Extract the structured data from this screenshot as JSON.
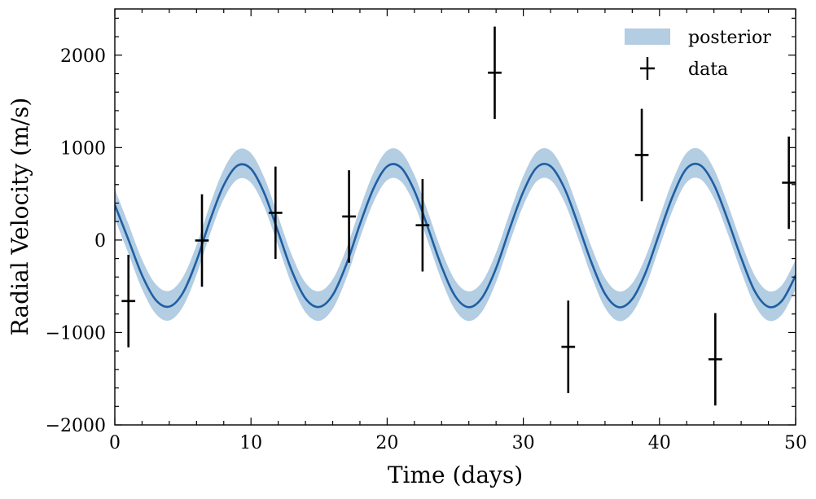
{
  "chart_data": {
    "type": "line",
    "title": "",
    "xlabel": "Time (days)",
    "ylabel": "Radial Velocity (m/s)",
    "xlim": [
      0,
      50
    ],
    "ylim": [
      -2000,
      2500
    ],
    "xticks": [
      0,
      10,
      20,
      30,
      40,
      50
    ],
    "yticks": [
      -2000,
      -1000,
      0,
      1000,
      2000
    ],
    "xtick_labels": [
      "0",
      "10",
      "20",
      "30",
      "40",
      "50"
    ],
    "ytick_labels": [
      "−2000",
      "−1000",
      "0",
      "1000",
      "2000"
    ],
    "grid": false,
    "legend_position": "top-right",
    "legend": [
      "posterior",
      "data"
    ],
    "colors": {
      "band": "#b3cde3",
      "line": "#1f5fa3",
      "data": "#000000"
    },
    "model": {
      "x": [
        0,
        1,
        2,
        3,
        4,
        5,
        6,
        7,
        8,
        9,
        10,
        11,
        12,
        13,
        14,
        15,
        16,
        17,
        18,
        19,
        20,
        21,
        22,
        23,
        24,
        25,
        26,
        27,
        28,
        29,
        30,
        31,
        32,
        33,
        34,
        35,
        36,
        37,
        38,
        39,
        40,
        41,
        42,
        43,
        44,
        45,
        46,
        47,
        48,
        49,
        50
      ],
      "median": [
        380,
        3,
        -381,
        -647,
        -720,
        -571,
        -225,
        217,
        594,
        805,
        770,
        498,
        84,
        -333,
        -631,
        -724,
        -595,
        -265,
        170,
        559,
        797,
        786,
        533,
        132,
        -287,
        -608,
        -726,
        -617,
        -305,
        124,
        523,
        787,
        799,
        567,
        178,
        -241,
        -582,
        -726,
        -638,
        -345,
        76,
        485,
        775,
        809,
        599,
        224,
        -192,
        -554,
        -722,
        -656,
        -384
      ],
      "lower": [
        230,
        -147,
        -531,
        -797,
        -870,
        -721,
        -375,
        67,
        444,
        655,
        620,
        348,
        -66,
        -483,
        -781,
        -874,
        -745,
        -415,
        20,
        409,
        647,
        636,
        383,
        -18,
        -437,
        -758,
        -876,
        -767,
        -455,
        -26,
        373,
        637,
        649,
        417,
        28,
        -391,
        -732,
        -876,
        -788,
        -495,
        -74,
        335,
        625,
        659,
        449,
        74,
        -342,
        -704,
        -872,
        -806,
        -534
      ],
      "upper": [
        550,
        173,
        -211,
        -477,
        -550,
        -401,
        -55,
        387,
        764,
        975,
        940,
        668,
        254,
        -163,
        -461,
        -554,
        -425,
        -95,
        340,
        729,
        967,
        956,
        703,
        302,
        -117,
        -438,
        -556,
        -447,
        -135,
        294,
        693,
        957,
        969,
        737,
        348,
        -71,
        -412,
        -556,
        -468,
        -175,
        246,
        655,
        945,
        979,
        769,
        394,
        -22,
        -384,
        -552,
        -486,
        -214
      ]
    },
    "data_points": [
      {
        "x": 1.0,
        "y": -660,
        "yerr": 500,
        "xerr": 0.5
      },
      {
        "x": 6.4,
        "y": -5,
        "yerr": 500,
        "xerr": 0.5
      },
      {
        "x": 11.8,
        "y": 295,
        "yerr": 500,
        "xerr": 0.5
      },
      {
        "x": 17.2,
        "y": 255,
        "yerr": 500,
        "xerr": 0.5
      },
      {
        "x": 22.6,
        "y": 160,
        "yerr": 500,
        "xerr": 0.5
      },
      {
        "x": 27.9,
        "y": 1810,
        "yerr": 500,
        "xerr": 0.5
      },
      {
        "x": 33.3,
        "y": -1155,
        "yerr": 500,
        "xerr": 0.5
      },
      {
        "x": 38.7,
        "y": 920,
        "yerr": 500,
        "xerr": 0.5
      },
      {
        "x": 44.1,
        "y": -1290,
        "yerr": 500,
        "xerr": 0.5
      },
      {
        "x": 49.5,
        "y": 620,
        "yerr": 500,
        "xerr": 0.5
      }
    ]
  }
}
